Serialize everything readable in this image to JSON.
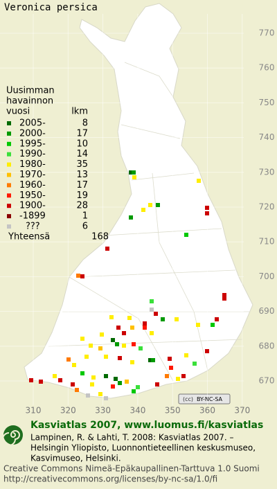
{
  "title": "Veronica persica",
  "legend": {
    "heading": [
      "Uusimman",
      "havainnon",
      "vuosi"
    ],
    "count_heading": "lkm",
    "rows": [
      {
        "label": "2005-",
        "count": 8,
        "color": "#006a00"
      },
      {
        "label": "2000-",
        "count": 17,
        "color": "#009a00"
      },
      {
        "label": "1995-",
        "count": 10,
        "color": "#00c800"
      },
      {
        "label": "1990-",
        "count": 14,
        "color": "#3ae03a"
      },
      {
        "label": "1980-",
        "count": 35,
        "color": "#ffee00"
      },
      {
        "label": "1970-",
        "count": 13,
        "color": "#ffc000"
      },
      {
        "label": "1960-",
        "count": 17,
        "color": "#ff7a00"
      },
      {
        "label": "1950-",
        "count": 19,
        "color": "#ff1800"
      },
      {
        "label": "1900-",
        "count": 28,
        "color": "#cc0000"
      },
      {
        "label": "-1899",
        "count": 1,
        "color": "#8a0000"
      },
      {
        "label": "???",
        "count": 6,
        "color": "#c4c4c4"
      }
    ],
    "total_label": "Yhteensä",
    "total": 168
  },
  "grid": {
    "y_labels": [
      770,
      760,
      750,
      740,
      730,
      720,
      710,
      700,
      690,
      680,
      670
    ],
    "x_labels": [
      310,
      320,
      330,
      340,
      350,
      360,
      370
    ]
  },
  "badge": "BY-NC-SA",
  "footer": {
    "site": "Kasviatlas 2007, www.luomus.fi/kasviatlas",
    "citation": [
      "Lampinen, R. & Lahti, T. 2008: Kasviatlas 2007. –",
      "Helsingin Yliopisto, Luonnontieteellinen keskusmuseo,",
      "Kasvimuseo, Helsinki."
    ],
    "license": [
      "Creative Commons Nimeä-Epäkaupallinen-Tarttuva 1.0 Suomi",
      "http://creativecommons.org/licenses/by-nc-sa/1.0/fi"
    ]
  }
}
